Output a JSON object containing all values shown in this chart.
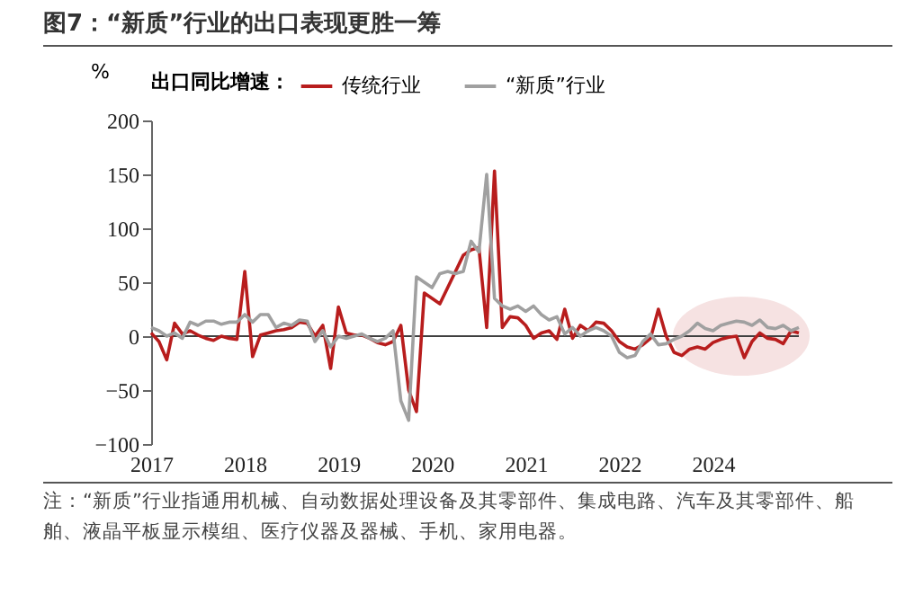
{
  "chart_data": {
    "type": "line",
    "title": "图7：“新质”行业的出口表现更胜一筹",
    "ylabel": "%",
    "legend_title": "出口同比增速：",
    "legend": "top",
    "categories": [
      "2017",
      null,
      null,
      null,
      null,
      null,
      null,
      null,
      null,
      null,
      null,
      null,
      "2018",
      null,
      null,
      null,
      null,
      null,
      null,
      null,
      null,
      null,
      null,
      null,
      "2019",
      null,
      null,
      null,
      null,
      null,
      null,
      null,
      null,
      null,
      null,
      null,
      "2020",
      null,
      null,
      null,
      null,
      null,
      null,
      null,
      null,
      null,
      null,
      null,
      "2021",
      null,
      null,
      null,
      null,
      null,
      null,
      null,
      null,
      null,
      null,
      null,
      "2022",
      null,
      null,
      null,
      null,
      null,
      null,
      null,
      null,
      null,
      null,
      null,
      "2024",
      null,
      null,
      null,
      null,
      null,
      null,
      null,
      null,
      null,
      null,
      null
    ],
    "series": [
      {
        "name": "传统行业",
        "color": "#b81d1d",
        "values": [
          3,
          -5,
          -22,
          12,
          2,
          5,
          1,
          -2,
          -4,
          0,
          -2,
          -3,
          60,
          -19,
          1,
          3,
          5,
          6,
          8,
          13,
          12,
          0,
          10,
          -30,
          27,
          3,
          1,
          1,
          -2,
          -6,
          -8,
          -5,
          10,
          -50,
          -70,
          40,
          35,
          30,
          45,
          60,
          75,
          80,
          82,
          8,
          153,
          8,
          18,
          17,
          10,
          -2,
          3,
          5,
          -3,
          25,
          -2,
          10,
          5,
          13,
          12,
          5,
          -5,
          -10,
          -12,
          -8,
          -2,
          25,
          0,
          -15,
          -18,
          -12,
          -10,
          -12,
          -6,
          -3,
          -1,
          0,
          -20,
          -5,
          3,
          -2,
          -3,
          -7,
          5,
          3
        ]
      },
      {
        "name": "“新质”行业",
        "color": "#a0a0a0",
        "values": [
          8,
          5,
          0,
          3,
          -2,
          13,
          10,
          14,
          14,
          11,
          13,
          13,
          20,
          13,
          20,
          20,
          8,
          12,
          10,
          15,
          14,
          -5,
          5,
          -10,
          0,
          -2,
          0,
          2,
          -2,
          -5,
          -2,
          5,
          -60,
          -78,
          55,
          50,
          45,
          58,
          60,
          58,
          60,
          88,
          78,
          150,
          35,
          28,
          25,
          28,
          23,
          28,
          20,
          15,
          18,
          2,
          8,
          0,
          5,
          8,
          5,
          0,
          -15,
          -20,
          -18,
          -5,
          2,
          -8,
          -7,
          -3,
          0,
          5,
          12,
          7,
          5,
          10,
          12,
          14,
          13,
          10,
          15,
          8,
          7,
          10,
          5,
          8
        ]
      }
    ],
    "ylim": [
      -100,
      200
    ],
    "yticks": [
      -100,
      -50,
      0,
      50,
      100,
      150,
      200
    ],
    "ref_lines": [
      {
        "axis": "y",
        "value": 0,
        "color": "#404040"
      }
    ],
    "annotations": [
      "注：“新质”行业指通用机械、自动数据处理设备及其零部件、集成电路、汽车及其零部件、船舶、液晶平板显示模组、医疗仪器及器械、手机、家用电器。"
    ]
  }
}
